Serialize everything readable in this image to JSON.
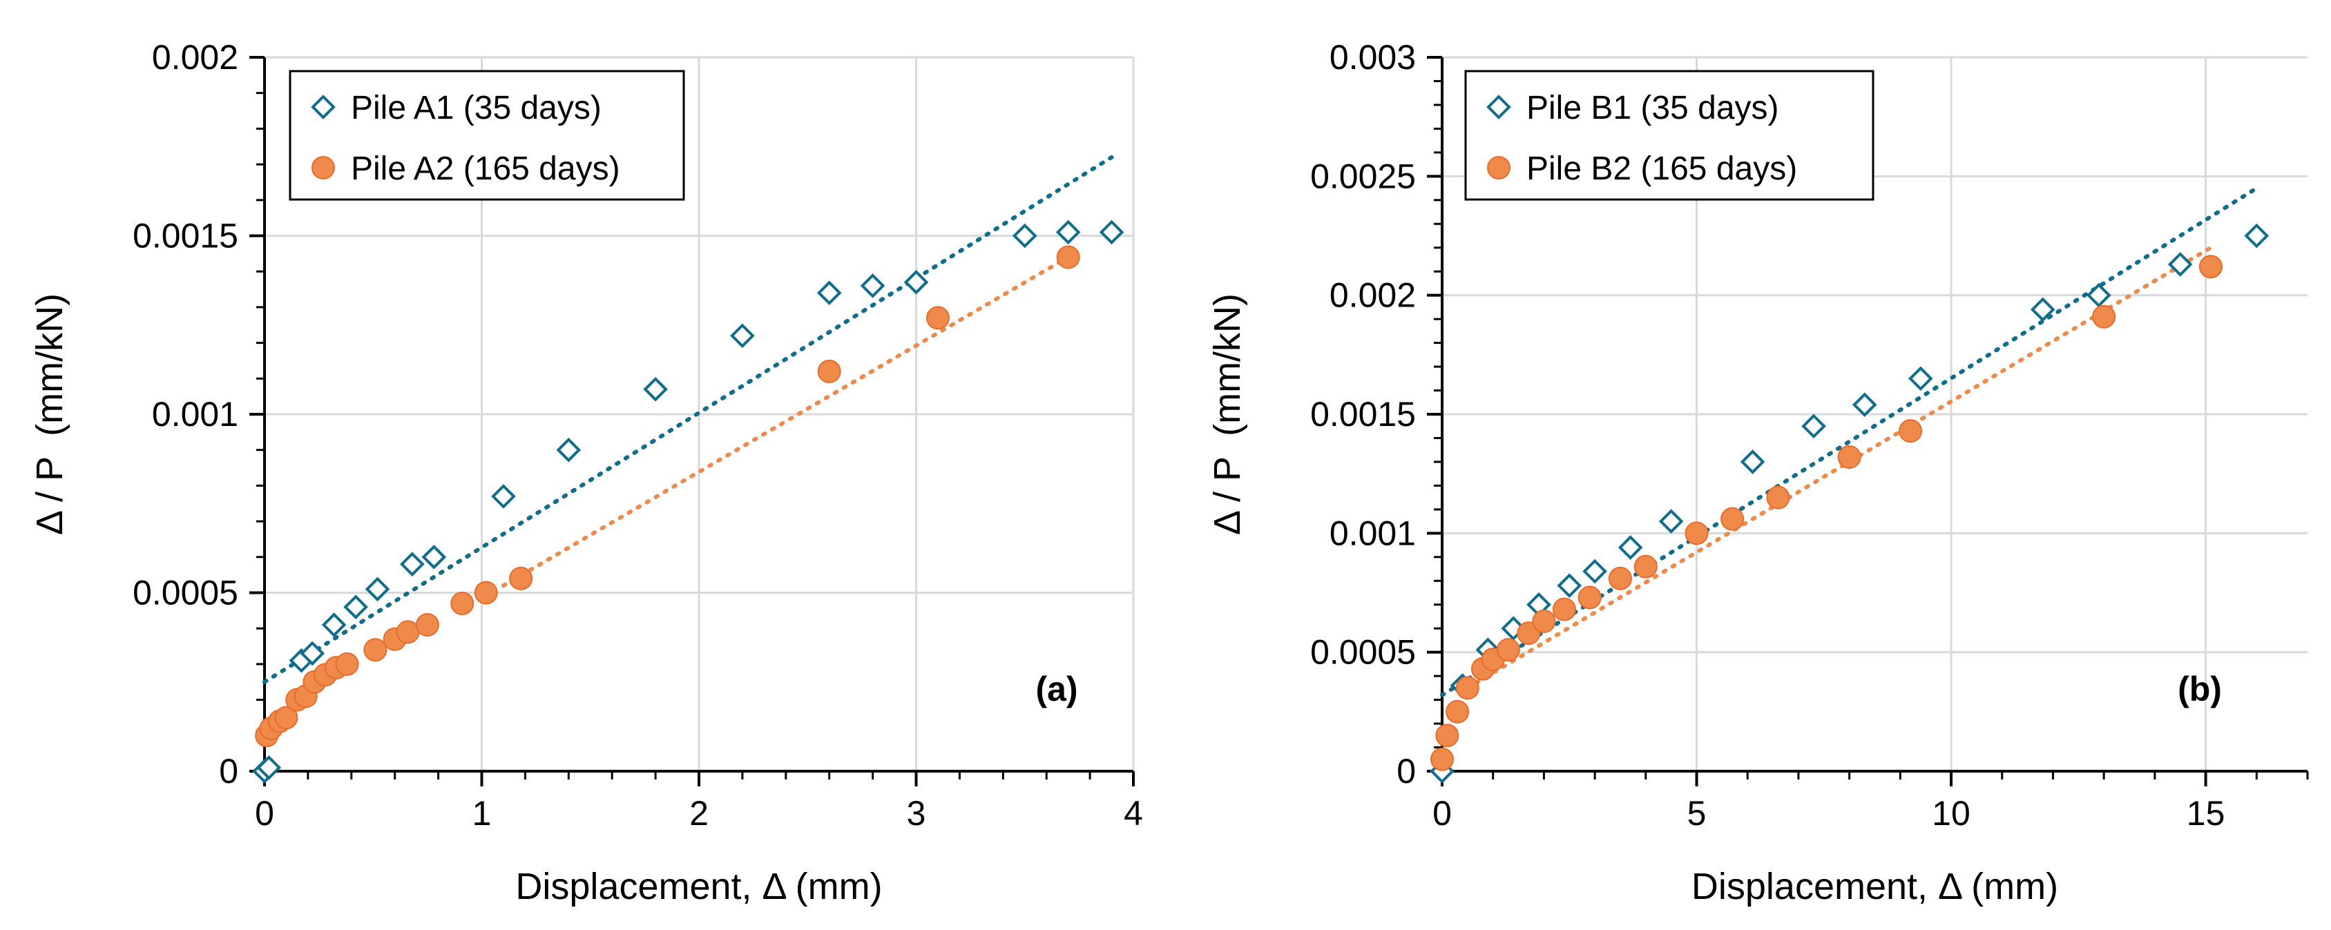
{
  "chart_data": [
    {
      "type": "scatter",
      "panel_label": "(a)",
      "xlabel": "Displacement, Δ (mm)",
      "ylabel": "Δ / P  (mm/kN)",
      "xlim": [
        0,
        4
      ],
      "ylim": [
        0,
        0.002
      ],
      "xticks": [
        0,
        1,
        2,
        3,
        4
      ],
      "xtick_labels": [
        "0",
        "1",
        "2",
        "3",
        "4"
      ],
      "yticks": [
        0,
        0.0005,
        0.001,
        0.0015,
        0.002
      ],
      "ytick_labels": [
        "0",
        "0.0005",
        "0.001",
        "0.0015",
        "0.002"
      ],
      "grid": true,
      "legend_position": "top-left",
      "series": [
        {
          "name": "Pile A1 (35 days)",
          "marker": "diamond-open",
          "color": "#0F6E8C",
          "x": [
            0.0,
            0.02,
            0.17,
            0.22,
            0.32,
            0.42,
            0.52,
            0.68,
            0.78,
            1.1,
            1.4,
            1.8,
            2.2,
            2.6,
            2.8,
            3.0,
            3.5,
            3.7,
            3.9
          ],
          "y": [
            0.0,
            1e-05,
            0.00031,
            0.00033,
            0.00041,
            0.00046,
            0.00051,
            0.00058,
            0.0006,
            0.00077,
            0.0009,
            0.00107,
            0.00122,
            0.00134,
            0.00136,
            0.00137,
            0.0015,
            0.00151,
            0.00151
          ],
          "trendline": {
            "x": [
              0,
              3.9
            ],
            "y": [
              0.00025,
              0.00172
            ]
          }
        },
        {
          "name": "Pile A2 (165 days)",
          "marker": "circle-filled",
          "color": "#F08A4B",
          "x": [
            0.01,
            0.03,
            0.07,
            0.1,
            0.15,
            0.19,
            0.23,
            0.28,
            0.33,
            0.38,
            0.51,
            0.6,
            0.66,
            0.75,
            0.91,
            1.02,
            1.18,
            2.6,
            3.1,
            3.7
          ],
          "y": [
            0.0001,
            0.00012,
            0.00014,
            0.00015,
            0.0002,
            0.00021,
            0.00025,
            0.00027,
            0.00029,
            0.0003,
            0.00034,
            0.00037,
            0.00039,
            0.00041,
            0.00047,
            0.0005,
            0.00054,
            0.00112,
            0.00127,
            0.00144
          ],
          "trendline": {
            "x": [
              1.1,
              3.7
            ],
            "y": [
              0.00052,
              0.00144
            ]
          }
        }
      ]
    },
    {
      "type": "scatter",
      "panel_label": "(b)",
      "xlabel": "Displacement, Δ (mm)",
      "ylabel": "Δ / P  (mm/kN)",
      "xlim": [
        0,
        17
      ],
      "ylim": [
        0,
        0.003
      ],
      "xticks": [
        0,
        5,
        10,
        15
      ],
      "xtick_labels": [
        "0",
        "5",
        "10",
        "15"
      ],
      "yticks": [
        0,
        0.0005,
        0.001,
        0.0015,
        0.002,
        0.0025,
        0.003
      ],
      "ytick_labels": [
        "0",
        "0.0005",
        "0.001",
        "0.0015",
        "0.002",
        "0.0025",
        "0.003"
      ],
      "grid": true,
      "legend_position": "top-left",
      "series": [
        {
          "name": "Pile B1 (35 days)",
          "marker": "diamond-open",
          "color": "#0F6E8C",
          "x": [
            0.0,
            0.4,
            0.9,
            1.4,
            1.9,
            2.5,
            3.0,
            3.7,
            4.5,
            6.1,
            7.3,
            8.3,
            9.4,
            11.8,
            12.9,
            14.5,
            16.0
          ],
          "y": [
            0.0,
            0.00036,
            0.00051,
            0.0006,
            0.0007,
            0.00078,
            0.00084,
            0.00094,
            0.00105,
            0.0013,
            0.00145,
            0.00154,
            0.00165,
            0.00194,
            0.002,
            0.00213,
            0.00225
          ],
          "trendline": {
            "x": [
              0,
              16.0
            ],
            "y": [
              0.00032,
              0.00245
            ]
          }
        },
        {
          "name": "Pile B2 (165 days)",
          "marker": "circle-filled",
          "color": "#F08A4B",
          "x": [
            0.0,
            0.1,
            0.3,
            0.5,
            0.8,
            1.0,
            1.3,
            1.7,
            2.0,
            2.4,
            2.9,
            3.5,
            4.0,
            5.0,
            5.7,
            6.6,
            8.0,
            9.2,
            13.0,
            15.1
          ],
          "y": [
            5e-05,
            0.00015,
            0.00025,
            0.00035,
            0.00043,
            0.00047,
            0.00051,
            0.00058,
            0.00063,
            0.00068,
            0.00073,
            0.00081,
            0.00086,
            0.001,
            0.00106,
            0.00115,
            0.00132,
            0.00143,
            0.00191,
            0.00212
          ],
          "trendline": {
            "x": [
              0.5,
              15.1
            ],
            "y": [
              0.00035,
              0.0022
            ]
          }
        }
      ]
    }
  ]
}
